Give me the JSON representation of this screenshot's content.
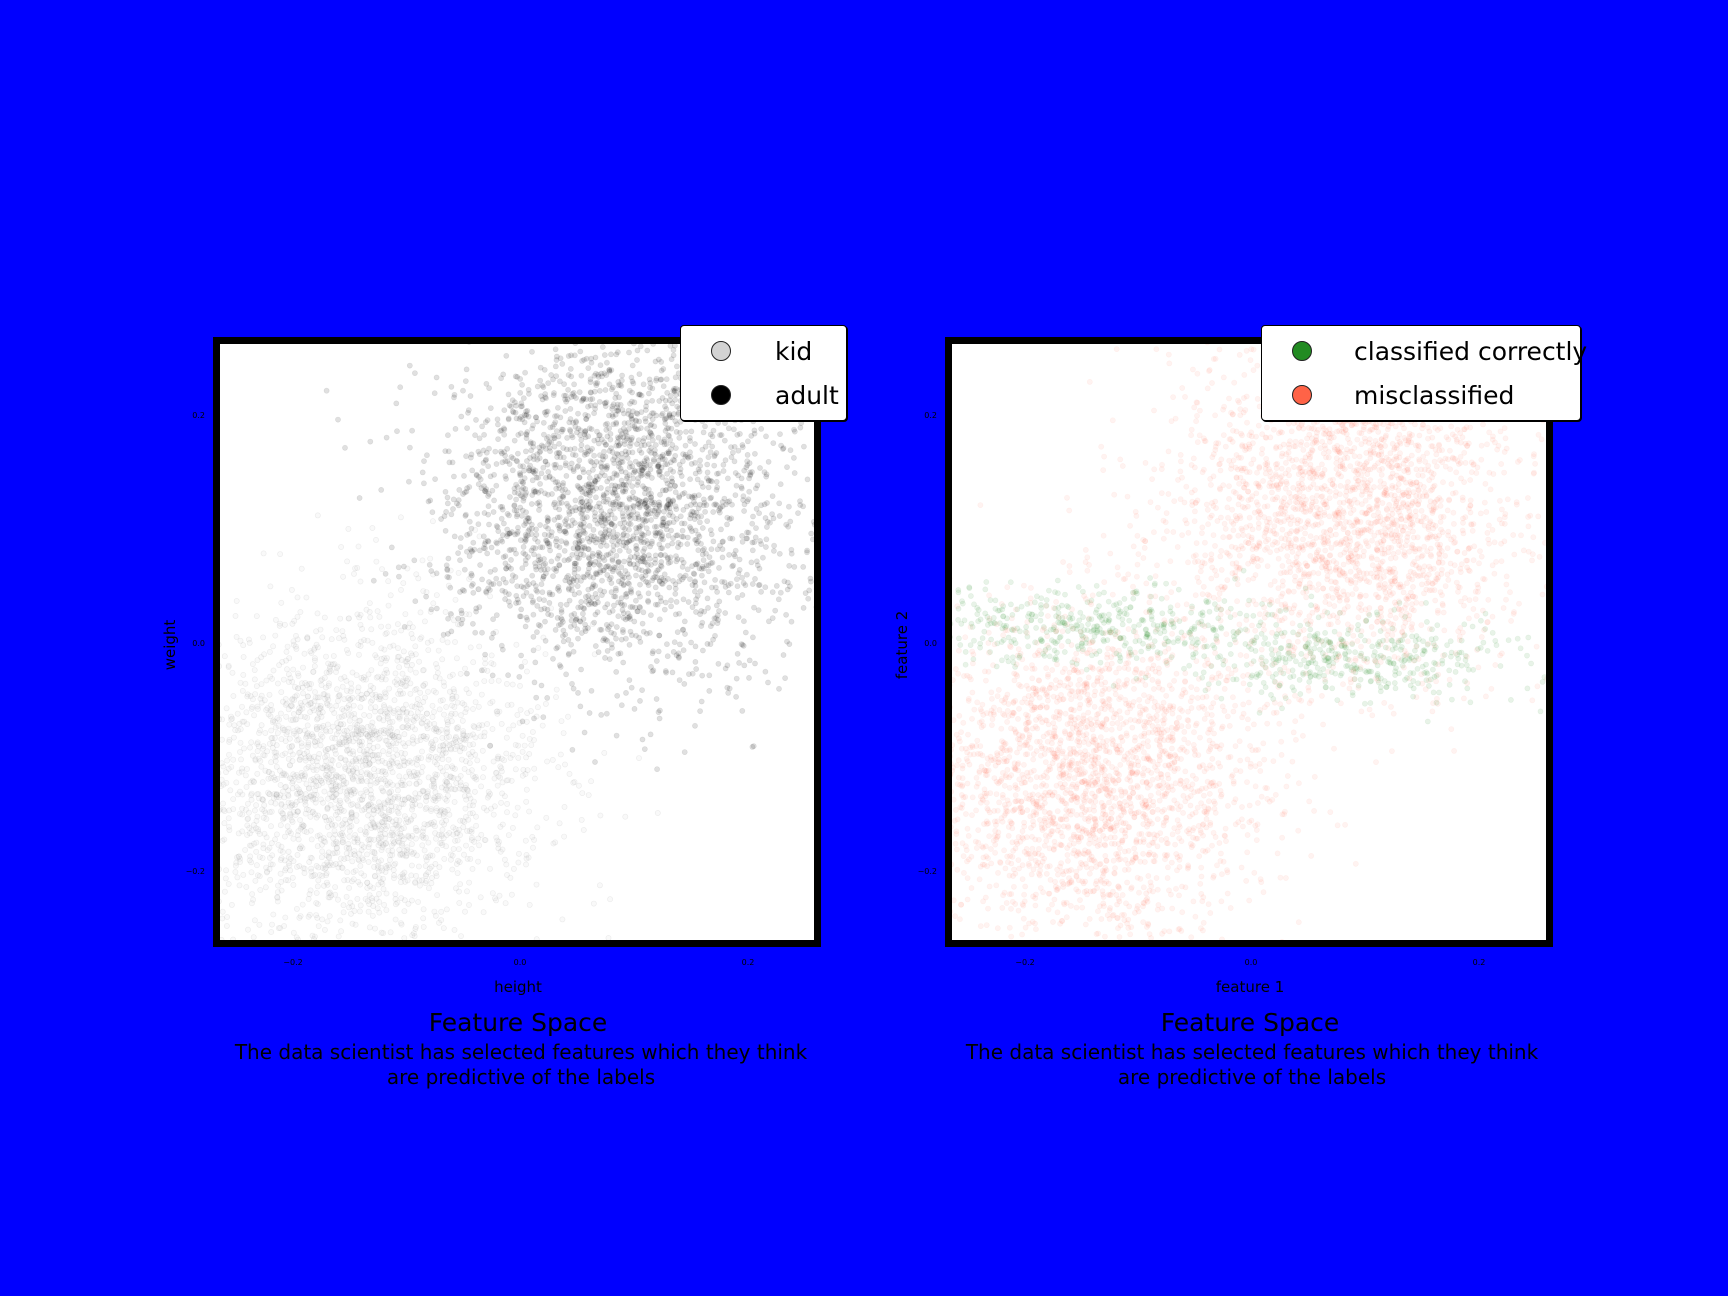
{
  "chart_data": [
    {
      "type": "scatter",
      "title": "Feature Space",
      "subtitle": "The data scientist has selected features which they think are predictive of the labels",
      "xlabel": "height",
      "ylabel": "weight",
      "xlim": [
        -0.25,
        0.265
      ],
      "ylim": [
        -0.265,
        0.265
      ],
      "x_ticks": [
        -0.2,
        0.0,
        0.2
      ],
      "x_tick_labels": [
        "−0.2",
        "0.0",
        "0.2"
      ],
      "y_ticks": [
        0.2,
        0.0,
        -0.2
      ],
      "y_tick_labels": [
        "0.2",
        "0.0",
        "−0.2"
      ],
      "grid": false,
      "legend_placement": "top-right",
      "series": [
        {
          "name": "kid",
          "color": "#d3d3d3",
          "center": [
            -0.13,
            -0.12
          ],
          "spread": [
            0.075,
            0.075
          ],
          "count": 2600,
          "alpha": 0.13
        },
        {
          "name": "adult",
          "color": "#000000",
          "center": [
            0.095,
            0.12
          ],
          "spread": [
            0.075,
            0.075
          ],
          "count": 2600,
          "alpha": 0.12
        }
      ]
    },
    {
      "type": "scatter",
      "title": "Feature Space",
      "subtitle": "The data scientist has selected features which they think are predictive of the labels",
      "xlabel": "feature 1",
      "ylabel": "feature 2",
      "xlim": [
        -0.25,
        0.265
      ],
      "ylim": [
        -0.265,
        0.265
      ],
      "x_ticks": [
        -0.2,
        0.0,
        0.2
      ],
      "x_tick_labels": [
        "−0.2",
        "0.0",
        "0.2"
      ],
      "y_ticks": [
        0.2,
        0.0,
        -0.2
      ],
      "y_tick_labels": [
        "0.2",
        "0.0",
        "−0.2"
      ],
      "grid": false,
      "legend_placement": "top-right",
      "series": [
        {
          "name": "classified correctly",
          "color": "#228b22",
          "regions": [
            {
              "center": [
                -0.13,
                0.015
              ],
              "spread": [
                0.075,
                0.018
              ],
              "count": 420
            },
            {
              "center": [
                0.095,
                -0.015
              ],
              "spread": [
                0.075,
                0.018
              ],
              "count": 420
            }
          ],
          "alpha": 0.1
        },
        {
          "name": "misclassified",
          "color": "#ff6347",
          "regions": [
            {
              "center": [
                -0.13,
                -0.12
              ],
              "spread": [
                0.075,
                0.075
              ],
              "count": 2400
            },
            {
              "center": [
                0.095,
                0.12
              ],
              "spread": [
                0.075,
                0.075
              ],
              "count": 2400
            }
          ],
          "alpha": 0.08
        }
      ]
    }
  ]
}
